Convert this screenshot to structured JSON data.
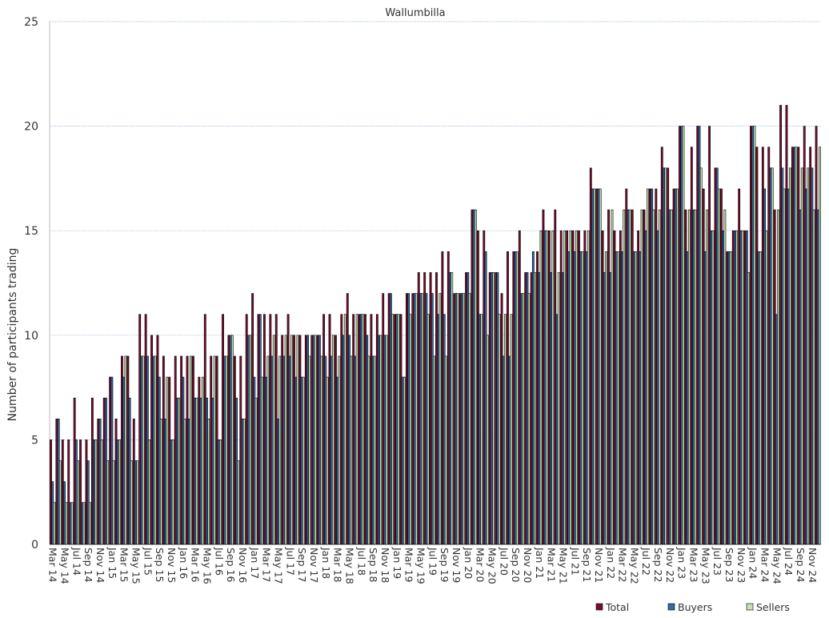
{
  "chart_data": {
    "type": "bar",
    "title": "Wallumbilla",
    "ylabel": "Number of participants trading",
    "categories": [
      "Mar 14",
      null,
      "May 14",
      null,
      "Jul 14",
      null,
      "Sep 14",
      null,
      "Nov 14",
      null,
      "Jan 15",
      null,
      "Mar 15",
      null,
      "May 15",
      null,
      "Jul 15",
      null,
      "Sep 15",
      null,
      "Nov 15",
      null,
      "Jan 16",
      null,
      "Mar 16",
      null,
      "May 16",
      null,
      "Jul 16",
      null,
      "Sep 16",
      null,
      "Nov 16",
      null,
      "Jan 17",
      null,
      "Mar 17",
      null,
      "May 17",
      null,
      "Jul 17",
      null,
      "Sep 17",
      null,
      "Nov 17",
      null,
      "Jan 18",
      null,
      "Mar 18",
      null,
      "May 18",
      null,
      "Jul 18",
      null,
      "Sep 18",
      null,
      "Nov 18",
      null,
      "Jan 19",
      null,
      "Mar 19",
      null,
      "May 19",
      null,
      "Jul 19",
      null,
      "Sep 19",
      null,
      "Nov 19",
      null,
      "Jan 20",
      null,
      "Mar 20",
      null,
      "May 20",
      null,
      "Jul 20",
      null,
      "Sep 20",
      null,
      "Nov 20",
      null,
      "Jan 21",
      null,
      "Mar 21",
      null,
      "May 21",
      null,
      "Jul 21",
      null,
      "Sep 21",
      null,
      "Nov 21",
      null,
      "Jan 22",
      null,
      "Mar 22",
      null,
      "May 22",
      null,
      "Jul 22",
      null,
      "Sep 22",
      null,
      "Nov 22",
      null,
      "Jan 23",
      null,
      "Mar 23",
      null,
      "May 23",
      null,
      "Jul 23",
      null,
      "Sep 23",
      null,
      "Nov 23",
      null,
      "Jan 24",
      null,
      "Mar 24",
      null,
      "May 24",
      null,
      "Jul 24",
      null,
      "Sep 24",
      null,
      "Nov 24",
      null
    ],
    "series": [
      {
        "name": "Total",
        "color": "#7b0c2e",
        "values": [
          5,
          6,
          5,
          5,
          7,
          5,
          5,
          7,
          6,
          7,
          8,
          6,
          9,
          9,
          6,
          11,
          11,
          10,
          10,
          9,
          8,
          9,
          9,
          9,
          9,
          8,
          11,
          9,
          9,
          11,
          10,
          9,
          9,
          11,
          12,
          11,
          11,
          11,
          11,
          10,
          11,
          10,
          10,
          10,
          10,
          10,
          11,
          11,
          10,
          11,
          12,
          11,
          11,
          11,
          11,
          11,
          12,
          12,
          11,
          11,
          12,
          12,
          13,
          13,
          13,
          13,
          14,
          14,
          12,
          12,
          13,
          16,
          15,
          15,
          13,
          13,
          12,
          14,
          14,
          15,
          13,
          13,
          14,
          16,
          15,
          16,
          15,
          15,
          15,
          15,
          15,
          18,
          17,
          15,
          16,
          15,
          15,
          17,
          16,
          15,
          16,
          17,
          17,
          19,
          18,
          17,
          20,
          16,
          19,
          20,
          17,
          20,
          18,
          17,
          14,
          15,
          17,
          15,
          20,
          19,
          19,
          19,
          16,
          21,
          21,
          19,
          19,
          20,
          19,
          20
        ]
      },
      {
        "name": "Buyers",
        "color": "#2e6ea6",
        "values": [
          3,
          6,
          3,
          2,
          5,
          2,
          4,
          5,
          6,
          7,
          8,
          5,
          8,
          7,
          4,
          9,
          9,
          9,
          8,
          6,
          5,
          7,
          8,
          6,
          7,
          7,
          7,
          7,
          5,
          9,
          10,
          7,
          6,
          10,
          8,
          11,
          8,
          9,
          6,
          9,
          9,
          8,
          8,
          10,
          10,
          10,
          9,
          9,
          8,
          10,
          10,
          9,
          11,
          10,
          9,
          10,
          10,
          12,
          11,
          8,
          12,
          12,
          12,
          12,
          12,
          11,
          11,
          13,
          12,
          12,
          13,
          16,
          11,
          14,
          13,
          13,
          9,
          9,
          14,
          12,
          13,
          14,
          13,
          15,
          13,
          11,
          13,
          14,
          14,
          14,
          14,
          17,
          17,
          13,
          13,
          14,
          14,
          16,
          14,
          14,
          15,
          17,
          15,
          18,
          16,
          17,
          20,
          14,
          16,
          20,
          14,
          15,
          18,
          15,
          14,
          15,
          15,
          15,
          20,
          14,
          17,
          18,
          11,
          18,
          17,
          19,
          16,
          17,
          18,
          16
        ]
      },
      {
        "name": "Sellers",
        "color": "#c6e0b4",
        "values": [
          2,
          4,
          2,
          2,
          4,
          2,
          2,
          5,
          5,
          4,
          4,
          5,
          9,
          4,
          4,
          9,
          5,
          9,
          6,
          8,
          5,
          7,
          6,
          9,
          7,
          8,
          6,
          9,
          5,
          9,
          10,
          4,
          6,
          10,
          7,
          8,
          9,
          10,
          9,
          10,
          10,
          10,
          8,
          9,
          10,
          9,
          8,
          10,
          9,
          11,
          9,
          11,
          11,
          9,
          9,
          10,
          10,
          11,
          11,
          8,
          11,
          12,
          12,
          11,
          9,
          12,
          9,
          13,
          12,
          12,
          12,
          16,
          11,
          10,
          13,
          11,
          11,
          11,
          14,
          12,
          12,
          13,
          15,
          15,
          15,
          13,
          15,
          15,
          15,
          14,
          15,
          17,
          17,
          14,
          16,
          14,
          16,
          16,
          14,
          16,
          17,
          16,
          16,
          18,
          16,
          17,
          20,
          16,
          16,
          18,
          16,
          15,
          17,
          16,
          14,
          15,
          15,
          13,
          20,
          14,
          15,
          18,
          16,
          17,
          18,
          19,
          18,
          18,
          16,
          19
        ]
      }
    ],
    "ylim": [
      0,
      25
    ],
    "yticks": [
      0,
      5,
      10,
      15,
      20,
      25
    ],
    "grid": true,
    "legend": "bottom-right"
  }
}
